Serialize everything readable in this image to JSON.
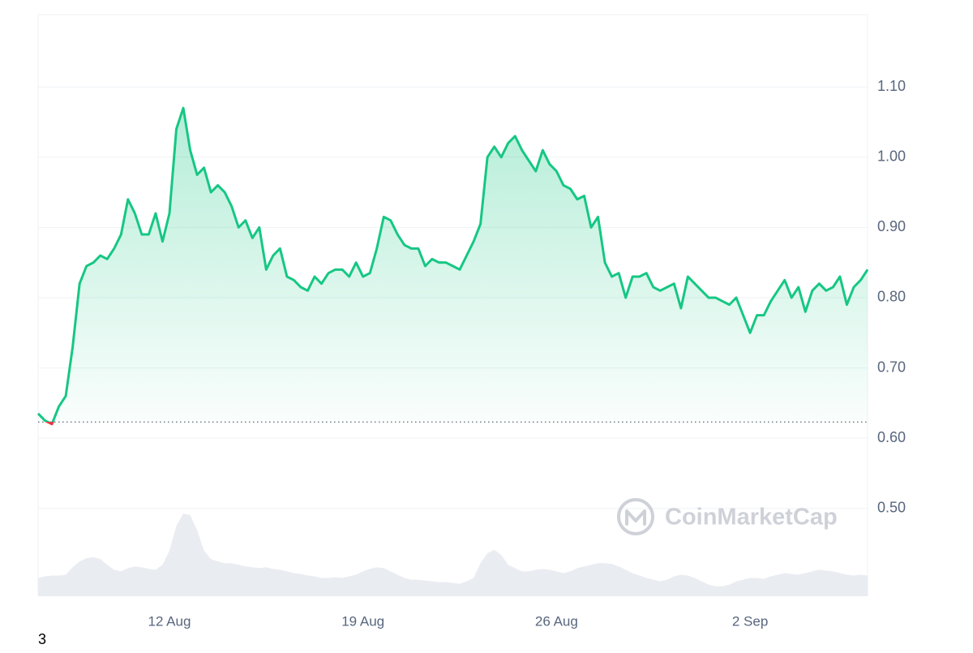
{
  "chart_data": {
    "type": "line",
    "categories": [
      null,
      null,
      null,
      null,
      null,
      null,
      null,
      null,
      null,
      null,
      null,
      null,
      null,
      null,
      null,
      null,
      null,
      null,
      null,
      "12 Aug",
      null,
      null,
      null,
      null,
      null,
      null,
      null,
      null,
      null,
      null,
      null,
      null,
      null,
      null,
      null,
      null,
      null,
      null,
      null,
      null,
      null,
      null,
      null,
      null,
      null,
      null,
      null,
      "19 Aug",
      null,
      null,
      null,
      null,
      null,
      null,
      null,
      null,
      null,
      null,
      null,
      null,
      null,
      null,
      null,
      null,
      null,
      null,
      null,
      null,
      null,
      null,
      null,
      null,
      null,
      null,
      null,
      "26 Aug",
      null,
      null,
      null,
      null,
      null,
      null,
      null,
      null,
      null,
      null,
      null,
      null,
      null,
      null,
      null,
      null,
      null,
      null,
      null,
      null,
      null,
      null,
      null,
      null,
      null,
      null,
      null,
      "2 Sep",
      null,
      null,
      null,
      null,
      null,
      null,
      null,
      null,
      null,
      null,
      null,
      null,
      null,
      null,
      null,
      null,
      null
    ],
    "series": [
      {
        "color": "#16c784",
        "down_color": "#ea3943",
        "values": [
          0.635,
          0.625,
          0.62,
          0.645,
          0.66,
          0.73,
          0.82,
          0.845,
          0.85,
          0.86,
          0.855,
          0.87,
          0.89,
          0.94,
          0.92,
          0.89,
          0.89,
          0.92,
          0.88,
          0.92,
          1.04,
          1.07,
          1.01,
          0.975,
          0.985,
          0.95,
          0.96,
          0.95,
          0.93,
          0.9,
          0.91,
          0.885,
          0.9,
          0.84,
          0.86,
          0.87,
          0.83,
          0.825,
          0.815,
          0.81,
          0.83,
          0.82,
          0.835,
          0.84,
          0.84,
          0.83,
          0.85,
          0.83,
          0.835,
          0.87,
          0.915,
          0.91,
          0.89,
          0.875,
          0.87,
          0.87,
          0.845,
          0.855,
          0.85,
          0.85,
          0.845,
          0.84,
          0.86,
          0.88,
          0.905,
          1.0,
          1.015,
          1.0,
          1.02,
          1.03,
          1.01,
          0.995,
          0.98,
          1.01,
          0.99,
          0.98,
          0.96,
          0.955,
          0.94,
          0.945,
          0.9,
          0.915,
          0.85,
          0.83,
          0.835,
          0.8,
          0.83,
          0.83,
          0.835,
          0.815,
          0.81,
          0.815,
          0.82,
          0.785,
          0.83,
          0.82,
          0.81,
          0.8,
          0.8,
          0.795,
          0.79,
          0.8,
          0.775,
          0.75,
          0.775,
          0.775,
          0.795,
          0.81,
          0.825,
          0.8,
          0.815,
          0.78,
          0.81,
          0.82,
          0.81,
          0.815,
          0.83,
          0.79,
          0.815,
          0.825,
          0.84
        ]
      }
    ],
    "baseline": 0.623,
    "volume": {
      "color": "#e9ecf1",
      "values": [
        22,
        24,
        25,
        25,
        26,
        35,
        42,
        46,
        47,
        45,
        38,
        32,
        30,
        34,
        36,
        35,
        33,
        32,
        38,
        55,
        85,
        100,
        98,
        80,
        55,
        45,
        42,
        40,
        40,
        38,
        36,
        35,
        34,
        35,
        33,
        32,
        30,
        28,
        27,
        25,
        24,
        22,
        22,
        23,
        22,
        24,
        26,
        30,
        33,
        35,
        34,
        30,
        26,
        22,
        20,
        20,
        19,
        18,
        17,
        17,
        16,
        15,
        18,
        22,
        40,
        52,
        56,
        50,
        38,
        34,
        30,
        30,
        32,
        33,
        32,
        30,
        28,
        30,
        34,
        36,
        38,
        40,
        40,
        39,
        36,
        32,
        28,
        25,
        22,
        20,
        18,
        20,
        24,
        26,
        25,
        22,
        18,
        14,
        12,
        12,
        14,
        18,
        20,
        22,
        22,
        21,
        24,
        26,
        28,
        27,
        26,
        28,
        30,
        32,
        31,
        30,
        28,
        26,
        25,
        26,
        25
      ]
    },
    "ylim": [
      0.375,
      1.203
    ],
    "yticks": [
      {
        "value": 0.5,
        "label": "0.50"
      },
      {
        "value": 0.6,
        "label": "0.60"
      },
      {
        "value": 0.7,
        "label": "0.70"
      },
      {
        "value": 0.8,
        "label": "0.80"
      },
      {
        "value": 0.9,
        "label": "0.90"
      },
      {
        "value": 1.0,
        "label": "1.00"
      },
      {
        "value": 1.1,
        "label": "1.10"
      }
    ],
    "grid": true,
    "watermark": "CoinMarketCap"
  },
  "footnote": "3"
}
